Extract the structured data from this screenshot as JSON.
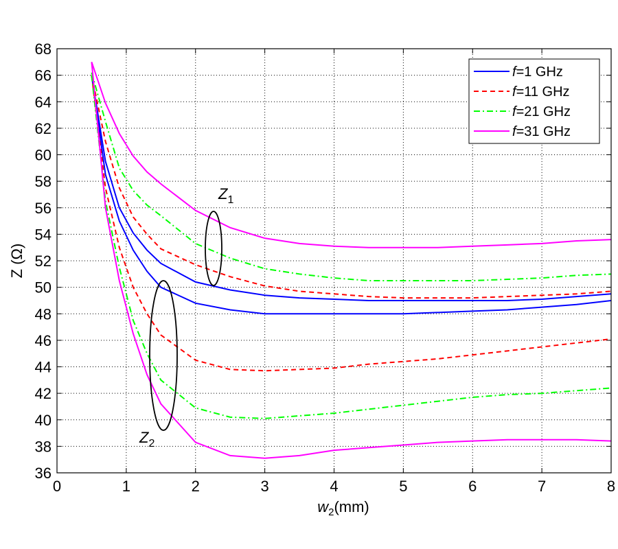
{
  "chart_data": {
    "type": "line",
    "title": "",
    "xlabel": {
      "var": "w",
      "sub": "2",
      "unit": "(mm)"
    },
    "ylabel": "Z (Ω)",
    "xlim": [
      0,
      8
    ],
    "ylim": [
      36,
      68
    ],
    "xticks": [
      "0",
      "1",
      "2",
      "3",
      "4",
      "5",
      "6",
      "7",
      "8"
    ],
    "yticks": [
      "36",
      "38",
      "40",
      "42",
      "44",
      "46",
      "48",
      "50",
      "52",
      "54",
      "56",
      "58",
      "60",
      "62",
      "64",
      "66",
      "68"
    ],
    "grid": true,
    "legend_position": "top-right",
    "legend": [
      {
        "pre": "f",
        "text": "=1 GHz",
        "color": "#0000ff",
        "dash": "solid"
      },
      {
        "pre": "f",
        "text": "=11 GHz",
        "color": "#ff0000",
        "dash": "dashed"
      },
      {
        "pre": "f",
        "text": "=21 GHz",
        "color": "#00ff00",
        "dash": "dashdot"
      },
      {
        "pre": "f",
        "text": "=31 GHz",
        "color": "#ff00ff",
        "dash": "solid"
      }
    ],
    "x": [
      0.5,
      0.7,
      0.9,
      1.1,
      1.3,
      1.5,
      2,
      2.5,
      3,
      3.5,
      4,
      4.5,
      5,
      5.5,
      6,
      6.5,
      7,
      7.5,
      8
    ],
    "series": [
      {
        "name": "Z1 f=1 GHz",
        "legend": 0,
        "values": [
          66.0,
          59.5,
          56.0,
          54.1,
          52.8,
          51.8,
          50.4,
          49.8,
          49.4,
          49.2,
          49.1,
          49.0,
          49.0,
          49.0,
          49.0,
          49.0,
          49.1,
          49.3,
          49.5
        ]
      },
      {
        "name": "Z2 f=1 GHz",
        "legend": 0,
        "values": [
          66.0,
          58.5,
          55.0,
          52.8,
          51.2,
          50.0,
          48.8,
          48.3,
          48.0,
          48.0,
          48.0,
          48.0,
          48.0,
          48.1,
          48.2,
          48.3,
          48.5,
          48.7,
          49.0
        ]
      },
      {
        "name": "Z1 f=11 GHz",
        "legend": 1,
        "values": [
          66.0,
          61.0,
          57.5,
          55.3,
          54.0,
          52.9,
          51.7,
          50.8,
          50.1,
          49.7,
          49.5,
          49.3,
          49.2,
          49.2,
          49.2,
          49.3,
          49.4,
          49.5,
          49.7
        ]
      },
      {
        "name": "Z2 f=11 GHz",
        "legend": 1,
        "values": [
          66.0,
          57.5,
          53.0,
          50.0,
          48.0,
          46.4,
          44.5,
          43.8,
          43.7,
          43.8,
          43.9,
          44.2,
          44.4,
          44.6,
          44.9,
          45.2,
          45.5,
          45.8,
          46.1
        ]
      },
      {
        "name": "Z1 f=21 GHz",
        "legend": 2,
        "values": [
          66.2,
          62.5,
          59.0,
          57.3,
          56.2,
          55.4,
          53.3,
          52.2,
          51.4,
          51.0,
          50.7,
          50.5,
          50.5,
          50.5,
          50.5,
          50.6,
          50.7,
          50.9,
          51.0
        ]
      },
      {
        "name": "Z2 f=21 GHz",
        "legend": 2,
        "values": [
          66.0,
          56.5,
          51.5,
          47.5,
          45.0,
          43.0,
          40.9,
          40.2,
          40.1,
          40.3,
          40.5,
          40.8,
          41.1,
          41.4,
          41.7,
          41.9,
          42.0,
          42.2,
          42.4
        ]
      },
      {
        "name": "Z1 f=31 GHz",
        "legend": 3,
        "values": [
          67.0,
          63.9,
          61.6,
          59.9,
          58.7,
          57.8,
          55.8,
          54.5,
          53.7,
          53.3,
          53.1,
          53.0,
          53.0,
          53.0,
          53.1,
          53.2,
          53.3,
          53.5,
          53.6
        ]
      },
      {
        "name": "Z2 f=31 GHz",
        "legend": 3,
        "values": [
          67.0,
          56.0,
          50.5,
          46.5,
          43.4,
          41.2,
          38.3,
          37.3,
          37.1,
          37.3,
          37.7,
          37.9,
          38.1,
          38.3,
          38.4,
          38.5,
          38.5,
          38.5,
          38.4
        ]
      }
    ],
    "annotations": [
      {
        "var": "Z",
        "sub": "1",
        "x": 2.25,
        "y": 53
      },
      {
        "var": "Z",
        "sub": "2",
        "x": 1.55,
        "y": 45
      }
    ]
  }
}
